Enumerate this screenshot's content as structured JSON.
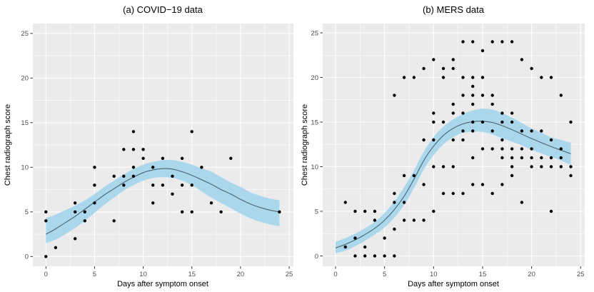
{
  "figure": {
    "background": "#FFFFFF",
    "panel_background": "#EBEBEB",
    "grid_color": "#FFFFFF",
    "point_color": "#000000",
    "ribbon_color": "#ABD7EC",
    "line_color": "#4C6874",
    "tick_text_color": "#4D4D4D"
  },
  "chart_data": [
    {
      "type": "scatter",
      "title": "(a) COVID−19 data",
      "xlabel": "Days after symptom onset",
      "ylabel": "Chest radiograph score",
      "xlim": [
        -1.3,
        25.4
      ],
      "ylim": [
        -1.2,
        26.1
      ],
      "x_ticks": [
        0,
        5,
        10,
        15,
        20,
        25
      ],
      "y_ticks": [
        0,
        5,
        10,
        15,
        20,
        25
      ],
      "grid": true,
      "legend": false,
      "points": [
        [
          0,
          0
        ],
        [
          0,
          4
        ],
        [
          0,
          5
        ],
        [
          1,
          1
        ],
        [
          3,
          2
        ],
        [
          3,
          5
        ],
        [
          3,
          6
        ],
        [
          4,
          4
        ],
        [
          4,
          5
        ],
        [
          5,
          6
        ],
        [
          5,
          8
        ],
        [
          5,
          10
        ],
        [
          7,
          4
        ],
        [
          7,
          9
        ],
        [
          8,
          8
        ],
        [
          8,
          9
        ],
        [
          8,
          12
        ],
        [
          9,
          9
        ],
        [
          9,
          10
        ],
        [
          9,
          12
        ],
        [
          9,
          14
        ],
        [
          10,
          11
        ],
        [
          10,
          12
        ],
        [
          11,
          6
        ],
        [
          11,
          8
        ],
        [
          11,
          10
        ],
        [
          12,
          8
        ],
        [
          12,
          11
        ],
        [
          13,
          7
        ],
        [
          13,
          9
        ],
        [
          14,
          5
        ],
        [
          14,
          8
        ],
        [
          14,
          11
        ],
        [
          15,
          5
        ],
        [
          15,
          8
        ],
        [
          15,
          14
        ],
        [
          16,
          10
        ],
        [
          17,
          6
        ],
        [
          18,
          5
        ],
        [
          19,
          11
        ],
        [
          24,
          5
        ]
      ],
      "smooth": {
        "x": [
          0,
          1,
          2,
          3,
          4,
          5,
          6,
          7,
          8,
          9,
          10,
          11,
          12,
          13,
          14,
          15,
          16,
          17,
          18,
          19,
          20,
          21,
          22,
          23,
          24
        ],
        "y": [
          2.5,
          3.1,
          3.8,
          4.5,
          5.3,
          6.1,
          6.9,
          7.6,
          8.3,
          8.9,
          9.4,
          9.7,
          9.85,
          9.8,
          9.5,
          9.1,
          8.6,
          8.1,
          7.5,
          7.0,
          6.4,
          5.9,
          5.5,
          5.2,
          5.0
        ],
        "upper": [
          4.3,
          4.7,
          5.2,
          5.7,
          6.3,
          7.0,
          7.8,
          8.5,
          9.2,
          9.8,
          10.3,
          10.6,
          10.8,
          10.8,
          10.6,
          10.3,
          9.9,
          9.5,
          8.9,
          8.3,
          7.8,
          7.2,
          6.8,
          6.5,
          6.3
        ],
        "lower": [
          1.5,
          1.9,
          2.5,
          3.2,
          4.0,
          4.9,
          5.8,
          6.6,
          7.4,
          8.0,
          8.5,
          8.8,
          8.9,
          8.8,
          8.5,
          8.0,
          7.3,
          6.6,
          6.0,
          5.4,
          4.8,
          4.3,
          3.9,
          3.6,
          3.4
        ]
      }
    },
    {
      "type": "scatter",
      "title": "(b) MERS data",
      "xlabel": "Days after symptom onset",
      "ylabel": "Chest radiograph score",
      "xlim": [
        -1.3,
        25.4
      ],
      "ylim": [
        -1.2,
        26.1
      ],
      "x_ticks": [
        0,
        5,
        10,
        15,
        20,
        25
      ],
      "y_ticks": [
        0,
        5,
        10,
        15,
        20,
        25
      ],
      "grid": true,
      "legend": false,
      "points": [
        [
          2,
          0
        ],
        [
          3,
          0
        ],
        [
          4,
          0
        ],
        [
          5,
          0
        ],
        [
          6,
          0
        ],
        [
          1,
          1
        ],
        [
          3,
          1
        ],
        [
          2,
          2
        ],
        [
          5,
          2
        ],
        [
          6,
          3
        ],
        [
          4,
          4
        ],
        [
          7,
          4
        ],
        [
          8,
          4
        ],
        [
          9,
          4
        ],
        [
          2,
          5
        ],
        [
          3,
          5
        ],
        [
          4,
          5
        ],
        [
          10,
          5
        ],
        [
          22,
          5
        ],
        [
          1,
          6
        ],
        [
          6,
          6
        ],
        [
          7,
          6
        ],
        [
          19,
          6
        ],
        [
          6,
          7
        ],
        [
          11,
          7
        ],
        [
          12,
          7
        ],
        [
          13,
          7
        ],
        [
          16,
          7
        ],
        [
          9,
          8
        ],
        [
          14,
          8
        ],
        [
          15,
          8
        ],
        [
          17,
          8
        ],
        [
          7,
          9
        ],
        [
          8,
          9
        ],
        [
          18,
          9
        ],
        [
          24,
          9
        ],
        [
          10,
          10
        ],
        [
          11,
          10
        ],
        [
          12,
          10
        ],
        [
          18,
          10
        ],
        [
          20,
          10
        ],
        [
          21,
          10
        ],
        [
          22,
          10
        ],
        [
          23,
          10
        ],
        [
          24,
          10
        ],
        [
          14,
          11
        ],
        [
          17,
          11
        ],
        [
          18,
          11
        ],
        [
          19,
          11
        ],
        [
          20,
          11
        ],
        [
          21,
          11
        ],
        [
          22,
          11
        ],
        [
          23,
          11
        ],
        [
          15,
          12
        ],
        [
          16,
          12
        ],
        [
          17,
          12
        ],
        [
          18,
          12
        ],
        [
          19,
          12
        ],
        [
          20,
          12
        ],
        [
          23,
          12
        ],
        [
          9,
          13
        ],
        [
          10,
          13
        ],
        [
          12,
          13
        ],
        [
          13,
          13
        ],
        [
          17,
          13
        ],
        [
          22,
          13
        ],
        [
          13,
          14
        ],
        [
          14,
          14
        ],
        [
          16,
          14
        ],
        [
          19,
          14
        ],
        [
          20,
          14
        ],
        [
          21,
          14
        ],
        [
          10,
          15
        ],
        [
          11,
          15
        ],
        [
          14,
          15
        ],
        [
          15,
          15
        ],
        [
          17,
          15
        ],
        [
          18,
          15
        ],
        [
          24,
          15
        ],
        [
          10,
          16
        ],
        [
          12,
          16
        ],
        [
          13,
          16
        ],
        [
          17,
          16
        ],
        [
          18,
          16
        ],
        [
          12,
          17
        ],
        [
          14,
          17
        ],
        [
          16,
          17
        ],
        [
          6,
          18
        ],
        [
          13,
          18
        ],
        [
          14,
          18
        ],
        [
          15,
          18
        ],
        [
          16,
          18
        ],
        [
          23,
          18
        ],
        [
          14,
          19
        ],
        [
          7,
          20
        ],
        [
          8,
          20
        ],
        [
          11,
          20
        ],
        [
          13,
          20
        ],
        [
          14,
          20
        ],
        [
          15,
          20
        ],
        [
          21,
          20
        ],
        [
          22,
          20
        ],
        [
          9,
          21
        ],
        [
          11,
          21
        ],
        [
          12,
          21
        ],
        [
          20,
          21
        ],
        [
          10,
          22
        ],
        [
          12,
          22
        ],
        [
          19,
          22
        ],
        [
          15,
          23
        ],
        [
          13,
          24
        ],
        [
          14,
          24
        ],
        [
          16,
          24
        ],
        [
          17,
          24
        ],
        [
          18,
          24
        ]
      ],
      "smooth": {
        "x": [
          0,
          1,
          2,
          3,
          4,
          5,
          6,
          7,
          8,
          9,
          10,
          11,
          12,
          13,
          14,
          15,
          16,
          17,
          18,
          19,
          20,
          21,
          22,
          23,
          24
        ],
        "y": [
          0.9,
          1.3,
          1.8,
          2.4,
          3.1,
          4.0,
          5.2,
          6.7,
          8.6,
          10.7,
          12.3,
          13.5,
          14.3,
          14.8,
          15.05,
          15.1,
          14.95,
          14.6,
          14.15,
          13.65,
          13.15,
          12.7,
          12.25,
          11.85,
          11.45
        ],
        "upper": [
          1.6,
          2.0,
          2.5,
          3.1,
          3.8,
          4.8,
          6.1,
          7.7,
          9.6,
          11.7,
          13.3,
          14.5,
          15.3,
          15.9,
          16.3,
          16.5,
          16.4,
          16.0,
          15.5,
          14.9,
          14.3,
          13.8,
          13.3,
          13.0,
          12.7
        ],
        "lower": [
          0.3,
          0.6,
          1.1,
          1.7,
          2.4,
          3.2,
          4.3,
          5.7,
          7.6,
          9.7,
          11.3,
          12.5,
          13.3,
          13.8,
          13.9,
          13.9,
          13.6,
          13.2,
          12.8,
          12.4,
          11.9,
          11.5,
          11.1,
          10.7,
          10.2
        ]
      }
    }
  ]
}
